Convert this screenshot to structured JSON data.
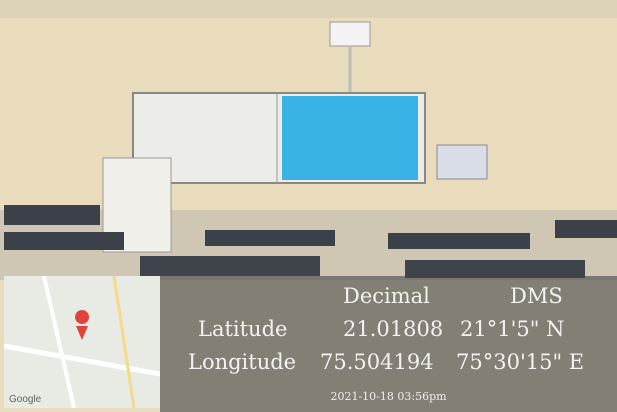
{
  "overlay": {
    "header": [
      "Decimal",
      "DMS"
    ],
    "rows": [
      [
        "Latitude",
        "21.01808",
        "21°1'5\" N"
      ],
      [
        "Longitude",
        "75.504194",
        "75°30'15\" E"
      ]
    ],
    "timestamp": "2021-10-18  03:56pm",
    "map_attribution": "Google"
  }
}
